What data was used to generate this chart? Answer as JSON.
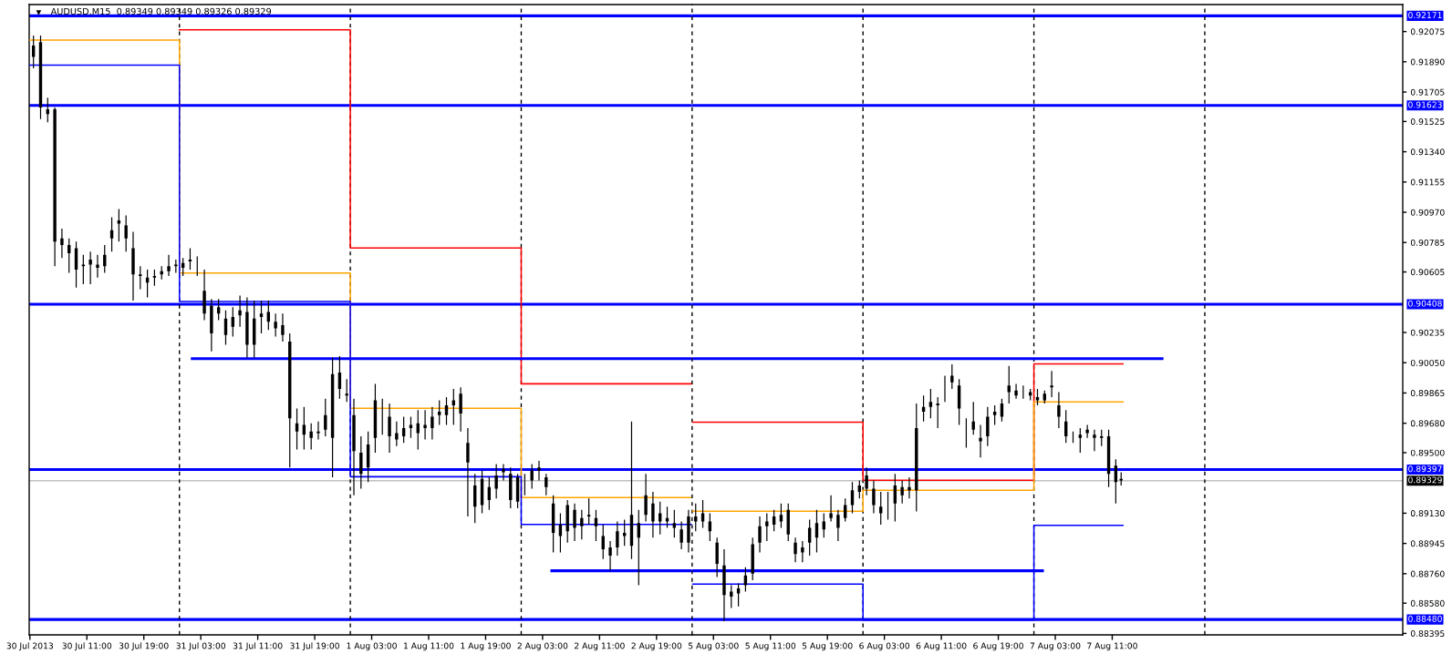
{
  "chart_data": [
    {
      "type": "candlestick",
      "title": "AUDUSD,M15  0.89349 0.89349 0.89326 0.89329",
      "x": [
        "2013-07-30T03:30",
        "2013-07-30T04:30",
        "2013-07-30T05:30",
        "2013-07-30T06:30",
        "2013-07-30T07:30",
        "2013-07-30T08:30",
        "2013-07-30T09:30",
        "2013-07-30T10:30",
        "2013-07-30T11:30",
        "2013-07-30T12:30",
        "2013-07-30T13:30",
        "2013-07-30T14:30",
        "2013-07-30T15:30",
        "2013-07-30T16:30",
        "2013-07-30T17:30",
        "2013-07-30T18:30",
        "2013-07-30T19:30",
        "2013-07-30T20:30",
        "2013-07-30T21:30",
        "2013-07-30T22:30",
        "2013-07-30T23:30",
        "2013-07-31T00:30",
        "2013-07-31T01:30",
        "2013-07-31T02:30",
        "2013-07-31T03:30",
        "2013-07-31T04:30",
        "2013-07-31T05:30",
        "2013-07-31T06:30",
        "2013-07-31T07:30",
        "2013-07-31T08:30",
        "2013-07-31T09:30",
        "2013-07-31T10:30",
        "2013-07-31T11:30",
        "2013-07-31T12:30",
        "2013-07-31T13:30",
        "2013-07-31T14:30",
        "2013-07-31T15:30",
        "2013-07-31T16:30",
        "2013-07-31T17:30",
        "2013-07-31T18:30",
        "2013-07-31T19:30",
        "2013-07-31T20:30",
        "2013-07-31T21:30",
        "2013-07-31T22:30",
        "2013-07-31T23:30",
        "2013-08-01T00:30",
        "2013-08-01T01:30",
        "2013-08-01T02:30",
        "2013-08-01T03:30",
        "2013-08-01T04:30",
        "2013-08-01T05:30",
        "2013-08-01T06:30",
        "2013-08-01T07:30",
        "2013-08-01T08:30",
        "2013-08-01T09:30",
        "2013-08-01T10:30",
        "2013-08-01T11:30",
        "2013-08-01T12:30",
        "2013-08-01T13:30",
        "2013-08-01T14:30",
        "2013-08-01T15:30",
        "2013-08-01T16:30",
        "2013-08-01T17:30",
        "2013-08-01T18:30",
        "2013-08-01T19:30",
        "2013-08-01T20:30",
        "2013-08-01T21:30",
        "2013-08-01T22:30",
        "2013-08-01T23:30",
        "2013-08-02T00:30",
        "2013-08-02T01:30",
        "2013-08-02T02:30",
        "2013-08-02T03:30",
        "2013-08-02T04:30",
        "2013-08-02T05:30",
        "2013-08-02T06:30",
        "2013-08-02T07:30",
        "2013-08-02T08:30",
        "2013-08-02T09:30",
        "2013-08-02T10:30",
        "2013-08-02T11:30",
        "2013-08-02T12:30",
        "2013-08-02T13:30",
        "2013-08-02T14:30",
        "2013-08-02T15:30",
        "2013-08-02T16:30",
        "2013-08-02T17:30",
        "2013-08-02T18:30",
        "2013-08-02T19:30",
        "2013-08-02T20:30",
        "2013-08-02T21:30",
        "2013-08-02T22:30",
        "2013-08-02T23:30"
      ],
      "ohlc": [
        [
          0.9192,
          0.9205,
          0.9185,
          0.9199
        ],
        [
          0.9201,
          0.9205,
          0.9154,
          0.9161
        ],
        [
          0.916,
          0.9167,
          0.9152,
          0.9157
        ],
        [
          0.916,
          0.9161,
          0.9064,
          0.9079
        ],
        [
          0.9077,
          0.9087,
          0.9069,
          0.9081
        ],
        [
          0.9077,
          0.9081,
          0.906,
          0.9072
        ],
        [
          0.9075,
          0.9079,
          0.9051,
          0.9062
        ],
        [
          0.9065,
          0.9071,
          0.9053,
          0.9064
        ],
        [
          0.9068,
          0.9073,
          0.9053,
          0.9065
        ],
        [
          0.9065,
          0.9071,
          0.9057,
          0.9063
        ],
        [
          0.9064,
          0.9077,
          0.906,
          0.9071
        ],
        [
          0.9081,
          0.9094,
          0.9073,
          0.9086
        ],
        [
          0.909,
          0.9099,
          0.9079,
          0.9092
        ],
        [
          0.9089,
          0.9095,
          0.9073,
          0.9081
        ],
        [
          0.9075,
          0.9085,
          0.9043,
          0.9059
        ],
        [
          0.9058,
          0.9064,
          0.905,
          0.9059
        ],
        [
          0.9057,
          0.9062,
          0.9045,
          0.9054
        ],
        [
          0.9057,
          0.9062,
          0.9052,
          0.9058
        ],
        [
          0.9059,
          0.9064,
          0.9056,
          0.9061
        ],
        [
          0.9061,
          0.9071,
          0.9058,
          0.9064
        ],
        [
          0.9064,
          0.9068,
          0.906,
          0.9065
        ],
        [
          0.9063,
          0.9069,
          0.9058,
          0.9066
        ],
        [
          0.9068,
          0.9075,
          0.9062,
          0.9067
        ],
        [
          0.9065,
          0.907,
          0.9058,
          0.9065
        ],
        [
          0.9049,
          0.9062,
          0.9031,
          0.9035
        ],
        [
          0.9023,
          0.9044,
          0.9012,
          0.904
        ],
        [
          0.9039,
          0.9044,
          0.9031,
          0.9035
        ],
        [
          0.9032,
          0.9037,
          0.9016,
          0.9022
        ],
        [
          0.9027,
          0.9039,
          0.9021,
          0.9033
        ],
        [
          0.9034,
          0.9046,
          0.9027,
          0.9037
        ],
        [
          0.9036,
          0.9045,
          0.9008,
          0.9016
        ],
        [
          0.9016,
          0.9043,
          0.9008,
          0.9032
        ],
        [
          0.9033,
          0.9043,
          0.9023,
          0.9035
        ],
        [
          0.9036,
          0.9043,
          0.9025,
          0.903
        ],
        [
          0.903,
          0.9035,
          0.9021,
          0.9026
        ],
        [
          0.9028,
          0.9035,
          0.9018,
          0.9022
        ],
        [
          0.9018,
          0.9023,
          0.8941,
          0.8971
        ],
        [
          0.8968,
          0.8977,
          0.8952,
          0.8963
        ],
        [
          0.8961,
          0.8978,
          0.8952,
          0.8967
        ],
        [
          0.8963,
          0.8968,
          0.8952,
          0.8959
        ],
        [
          0.8962,
          0.8969,
          0.8958,
          0.8963
        ],
        [
          0.8964,
          0.8983,
          0.896,
          0.8973
        ],
        [
          0.8959,
          0.9008,
          0.8935,
          0.8998
        ],
        [
          0.8999,
          0.9009,
          0.8983,
          0.8989
        ],
        [
          0.8986,
          0.8995,
          0.8981,
          0.8985
        ],
        [
          0.8973,
          0.8983,
          0.8924,
          0.8951
        ],
        [
          0.895,
          0.896,
          0.8928,
          0.8937
        ],
        [
          0.8941,
          0.8963,
          0.8932,
          0.8955
        ],
        [
          0.8959,
          0.8992,
          0.895,
          0.8982
        ],
        [
          0.8972,
          0.8983,
          0.8961,
          0.8972
        ],
        [
          0.8972,
          0.898,
          0.895,
          0.896
        ],
        [
          0.8962,
          0.8969,
          0.8954,
          0.8958
        ],
        [
          0.896,
          0.8972,
          0.8956,
          0.8965
        ],
        [
          0.8965,
          0.8972,
          0.8959,
          0.8967
        ],
        [
          0.8968,
          0.8976,
          0.8952,
          0.8962
        ],
        [
          0.8967,
          0.8976,
          0.8958,
          0.8965
        ],
        [
          0.8965,
          0.8978,
          0.8958,
          0.8972
        ],
        [
          0.8973,
          0.8982,
          0.8967,
          0.8975
        ],
        [
          0.8979,
          0.8984,
          0.8967,
          0.8973
        ],
        [
          0.8979,
          0.8989,
          0.8967,
          0.8982
        ],
        [
          0.8986,
          0.899,
          0.8963,
          0.8974
        ],
        [
          0.8956,
          0.8965,
          0.8911,
          0.8944
        ],
        [
          0.893,
          0.8937,
          0.8907,
          0.8917
        ],
        [
          0.8934,
          0.8939,
          0.8913,
          0.8918
        ],
        [
          0.8921,
          0.8935,
          0.8915,
          0.8929
        ],
        [
          0.8928,
          0.8943,
          0.8922,
          0.8936
        ],
        [
          0.894,
          0.8943,
          0.8933,
          0.8938
        ],
        [
          0.8937,
          0.8941,
          0.8916,
          0.8921
        ],
        [
          0.892,
          0.8937,
          0.8916,
          0.8935
        ],
        [
          0.8933,
          0.8937,
          0.8924,
          0.8933
        ],
        [
          0.8933,
          0.8943,
          0.8928,
          0.8939
        ],
        [
          0.8939,
          0.8945,
          0.8933,
          0.8941
        ],
        [
          0.8935,
          0.8937,
          0.8924,
          0.8929
        ],
        [
          0.8919,
          0.8924,
          0.8889,
          0.8901
        ],
        [
          0.8899,
          0.8913,
          0.8889,
          0.8906
        ],
        [
          0.8902,
          0.8921,
          0.8895,
          0.8918
        ],
        [
          0.8915,
          0.8919,
          0.8896,
          0.8904
        ],
        [
          0.8905,
          0.8915,
          0.8897,
          0.891
        ],
        [
          0.8912,
          0.8922,
          0.8906,
          0.8911
        ],
        [
          0.891,
          0.8915,
          0.8896,
          0.8905
        ],
        [
          0.8899,
          0.8906,
          0.8885,
          0.8891
        ],
        [
          0.8892,
          0.8896,
          0.8878,
          0.8887
        ],
        [
          0.8892,
          0.8908,
          0.8887,
          0.8902
        ],
        [
          0.8899,
          0.8909,
          0.8893,
          0.8901
        ],
        [
          0.8893,
          0.8969,
          0.8885,
          0.8912
        ],
        [
          0.8907,
          0.8915,
          0.8869,
          0.8898
        ],
        [
          0.8912,
          0.8937,
          0.8908,
          0.8924
        ],
        [
          0.8919,
          0.8926,
          0.8898,
          0.8908
        ],
        [
          0.8908,
          0.892,
          0.89,
          0.8913
        ],
        [
          0.891,
          0.8917,
          0.8904,
          0.8908
        ],
        [
          0.8907,
          0.8915,
          0.8898,
          0.8904
        ],
        [
          0.8903,
          0.8908,
          0.8891,
          0.8895
        ],
        [
          0.8895,
          0.8915,
          0.8889,
          0.8911
        ]
      ],
      "series": [
        {
          "type": "step",
          "color": "#ff0000",
          "x": [
            "2013-07-31T00:00",
            "2013-08-01T00:00",
            "2013-08-02T00:00",
            "2013-08-03T00:00"
          ],
          "values": [
            0.92086,
            0.90751,
            0.89921,
            0.89921
          ]
        },
        {
          "type": "step",
          "color": "#ffa500",
          "x": [
            "2013-07-30T03:00",
            "2013-07-31T00:00",
            "2013-08-01T00:00",
            "2013-08-02T00:00",
            "2013-08-03T00:00"
          ],
          "values": [
            0.92023,
            0.90598,
            0.89771,
            0.89225,
            0.89225
          ]
        },
        {
          "type": "step",
          "color": "#0000ff",
          "x": [
            "2013-07-30T03:00",
            "2013-07-31T00:00",
            "2013-08-01T00:00",
            "2013-08-02T00:00",
            "2013-08-03T00:00"
          ],
          "values": [
            0.9187,
            0.90425,
            0.89353,
            0.89061,
            0.89061
          ]
        },
        {
          "type": "line",
          "color": "#0000ff",
          "x": [
            "2013-07-31T01:36",
            "2013-08-03T00:00"
          ],
          "values": [
            0.90075,
            0.90075
          ]
        },
        {
          "type": "line",
          "color": "#0000ff",
          "x": [
            "2013-08-02T04:06",
            "2013-08-03T00:00"
          ],
          "values": [
            0.88778,
            0.88778
          ]
        }
      ],
      "ref_lines": [
        {
          "axis": "y",
          "value": 0.92171,
          "color": "#0000ff"
        },
        {
          "axis": "y",
          "value": 0.91623,
          "color": "#0000ff"
        },
        {
          "axis": "y",
          "value": 0.90408,
          "color": "#0000ff"
        },
        {
          "axis": "y",
          "value": 0.89397,
          "color": "#0000ff"
        },
        {
          "axis": "y",
          "value": 0.8848,
          "color": "#0000ff"
        },
        {
          "axis": "y",
          "value": 0.89329,
          "color": "#c0c0c0"
        },
        {
          "axis": "x",
          "value": "2013-07-31T00:00",
          "color": "#000000",
          "line_style": "dashed"
        },
        {
          "axis": "x",
          "value": "2013-08-01T00:00",
          "color": "#000000",
          "line_style": "dashed"
        },
        {
          "axis": "x",
          "value": "2013-08-02T00:00",
          "color": "#000000",
          "line_style": "dashed"
        }
      ],
      "xlim": [
        "2013-07-30T02:54",
        "2013-08-03T00:00"
      ],
      "ylim": [
        0.88386,
        0.9224
      ],
      "xticks": [
        {
          "value": "2013-07-30T03:00",
          "label": "30 Jul 2013"
        },
        {
          "value": "2013-07-30T11:00",
          "label": "30 Jul 11:00"
        },
        {
          "value": "2013-07-30T19:00",
          "label": "30 Jul 19:00"
        },
        {
          "value": "2013-07-31T03:00",
          "label": "31 Jul 03:00"
        },
        {
          "value": "2013-07-31T11:00",
          "label": "31 Jul 11:00"
        },
        {
          "value": "2013-07-31T19:00",
          "label": "31 Jul 19:00"
        },
        {
          "value": "2013-08-01T03:00",
          "label": "1 Aug 03:00"
        },
        {
          "value": "2013-08-01T11:00",
          "label": "1 Aug 11:00"
        },
        {
          "value": "2013-08-01T19:00",
          "label": "1 Aug 19:00"
        },
        {
          "value": "2013-08-02T03:00",
          "label": "2 Aug 03:00"
        },
        {
          "value": "2013-08-02T11:00",
          "label": "2 Aug 11:00"
        },
        {
          "value": "2013-08-02T19:00",
          "label": "2 Aug 19:00"
        }
      ],
      "tick_labels": "x"
    },
    {
      "type": "candlestick",
      "x": [
        "2013-08-05T00:30",
        "2013-08-05T01:30",
        "2013-08-05T02:30",
        "2013-08-05T03:30",
        "2013-08-05T04:30",
        "2013-08-05T05:30",
        "2013-08-05T06:30",
        "2013-08-05T07:30",
        "2013-08-05T08:30",
        "2013-08-05T09:30",
        "2013-08-05T10:30",
        "2013-08-05T11:30",
        "2013-08-05T12:30",
        "2013-08-05T13:30",
        "2013-08-05T14:30",
        "2013-08-05T15:30",
        "2013-08-05T16:30",
        "2013-08-05T17:30",
        "2013-08-05T18:30",
        "2013-08-05T19:30",
        "2013-08-05T20:30",
        "2013-08-05T21:30",
        "2013-08-05T22:30",
        "2013-08-05T23:30",
        "2013-08-06T00:30",
        "2013-08-06T01:30",
        "2013-08-06T02:30",
        "2013-08-06T03:30",
        "2013-08-06T04:30",
        "2013-08-06T05:30",
        "2013-08-06T06:30",
        "2013-08-06T07:30",
        "2013-08-06T08:30",
        "2013-08-06T09:30",
        "2013-08-06T10:30",
        "2013-08-06T11:30",
        "2013-08-06T12:30",
        "2013-08-06T13:30",
        "2013-08-06T14:30",
        "2013-08-06T15:30",
        "2013-08-06T16:30",
        "2013-08-06T17:30",
        "2013-08-06T18:30",
        "2013-08-06T19:30",
        "2013-08-06T20:30",
        "2013-08-06T21:30",
        "2013-08-06T22:30",
        "2013-08-06T23:30",
        "2013-08-07T00:30",
        "2013-08-07T01:30",
        "2013-08-07T02:30",
        "2013-08-07T03:30",
        "2013-08-07T04:30",
        "2013-08-07T05:30",
        "2013-08-07T06:30",
        "2013-08-07T07:30",
        "2013-08-07T08:30",
        "2013-08-07T09:30",
        "2013-08-07T10:30",
        "2013-08-07T11:30",
        "2013-08-07T12:15"
      ],
      "ohlc": [
        [
          0.8911,
          0.8919,
          0.8902,
          0.8908
        ],
        [
          0.8913,
          0.8921,
          0.8904,
          0.8908
        ],
        [
          0.8908,
          0.8913,
          0.8896,
          0.8902
        ],
        [
          0.8895,
          0.8898,
          0.8874,
          0.8882
        ],
        [
          0.8881,
          0.8891,
          0.8847,
          0.8863
        ],
        [
          0.8862,
          0.8869,
          0.8855,
          0.8865
        ],
        [
          0.8864,
          0.887,
          0.8856,
          0.8867
        ],
        [
          0.8869,
          0.888,
          0.8865,
          0.8875
        ],
        [
          0.8876,
          0.8898,
          0.8872,
          0.8894
        ],
        [
          0.8895,
          0.8911,
          0.8889,
          0.8905
        ],
        [
          0.8905,
          0.8913,
          0.8896,
          0.8908
        ],
        [
          0.8906,
          0.8915,
          0.8902,
          0.8911
        ],
        [
          0.8908,
          0.8919,
          0.8904,
          0.8912
        ],
        [
          0.8915,
          0.8919,
          0.8896,
          0.89
        ],
        [
          0.8895,
          0.8898,
          0.8883,
          0.8888
        ],
        [
          0.8889,
          0.8896,
          0.8883,
          0.8892
        ],
        [
          0.8895,
          0.8909,
          0.8887,
          0.8904
        ],
        [
          0.8898,
          0.8915,
          0.8889,
          0.8907
        ],
        [
          0.8903,
          0.8913,
          0.8898,
          0.8908
        ],
        [
          0.8913,
          0.8924,
          0.8908,
          0.891
        ],
        [
          0.8912,
          0.8915,
          0.8896,
          0.8904
        ],
        [
          0.891,
          0.8922,
          0.8908,
          0.8918
        ],
        [
          0.8918,
          0.8932,
          0.8913,
          0.8927
        ],
        [
          0.893,
          0.8933,
          0.8922,
          0.8926
        ],
        [
          0.8928,
          0.8941,
          0.8924,
          0.8936
        ],
        [
          0.8928,
          0.8933,
          0.8913,
          0.8918
        ],
        [
          0.8917,
          0.8926,
          0.8906,
          0.8913
        ],
        [
          0.8916,
          0.8926,
          0.8909,
          0.8916
        ],
        [
          0.8919,
          0.8937,
          0.8908,
          0.893
        ],
        [
          0.8929,
          0.8933,
          0.8919,
          0.8924
        ],
        [
          0.8927,
          0.8935,
          0.8922,
          0.8929
        ],
        [
          0.8927,
          0.898,
          0.8914,
          0.8965
        ],
        [
          0.8978,
          0.8985,
          0.8969,
          0.8975
        ],
        [
          0.8978,
          0.8989,
          0.8971,
          0.8981
        ],
        [
          0.898,
          0.8984,
          0.8965,
          0.8979
        ],
        [
          0.8989,
          0.8997,
          0.8981,
          0.8989
        ],
        [
          0.8997,
          0.9004,
          0.8989,
          0.8993
        ],
        [
          0.8991,
          0.8995,
          0.8967,
          0.8977
        ],
        [
          0.8962,
          0.8971,
          0.8953,
          0.8962
        ],
        [
          0.8964,
          0.8981,
          0.8961,
          0.8969
        ],
        [
          0.8959,
          0.8967,
          0.8947,
          0.8957
        ],
        [
          0.896,
          0.8978,
          0.8954,
          0.8972
        ],
        [
          0.8975,
          0.8979,
          0.8967,
          0.8973
        ],
        [
          0.8972,
          0.8983,
          0.8969,
          0.898
        ],
        [
          0.8991,
          0.9003,
          0.898,
          0.8987
        ],
        [
          0.8988,
          0.8992,
          0.8983,
          0.8985
        ],
        [
          0.8985,
          0.8991,
          0.8983,
          0.8985
        ],
        [
          0.8985,
          0.8989,
          0.8982,
          0.8987
        ],
        [
          0.8984,
          0.8989,
          0.8979,
          0.8982
        ],
        [
          0.8982,
          0.8988,
          0.898,
          0.8986
        ],
        [
          0.8991,
          0.9,
          0.8984,
          0.899
        ],
        [
          0.8979,
          0.8987,
          0.8965,
          0.8972
        ],
        [
          0.8969,
          0.8976,
          0.8956,
          0.896
        ],
        [
          0.8959,
          0.8963,
          0.8956,
          0.8959
        ],
        [
          0.8959,
          0.8965,
          0.895,
          0.8961
        ],
        [
          0.8962,
          0.8967,
          0.8959,
          0.8964
        ],
        [
          0.8961,
          0.8964,
          0.8951,
          0.8959
        ],
        [
          0.8959,
          0.8964,
          0.8954,
          0.896
        ],
        [
          0.896,
          0.8964,
          0.8929,
          0.8937
        ],
        [
          0.8942,
          0.8946,
          0.8919,
          0.8932
        ],
        [
          0.8934,
          0.8938,
          0.893,
          0.8933
        ]
      ],
      "series": [
        {
          "type": "step",
          "color": "#ff0000",
          "x": [
            "2013-08-05T00:00",
            "2013-08-06T00:00",
            "2013-08-07T00:00",
            "2013-08-07T12:30"
          ],
          "values": [
            0.89687,
            0.89331,
            0.90043,
            0.90043
          ]
        },
        {
          "type": "step",
          "color": "#ffa500",
          "x": [
            "2013-08-05T00:00",
            "2013-08-06T00:00",
            "2013-08-07T00:00",
            "2013-08-07T12:30"
          ],
          "values": [
            0.89142,
            0.8927,
            0.8981,
            0.8981
          ]
        },
        {
          "type": "step",
          "color": "#0000ff",
          "x": [
            "2013-08-05T00:00",
            "2013-08-06T00:00",
            "2013-08-07T00:00",
            "2013-08-07T12:30"
          ],
          "values": [
            0.88696,
            0.88477,
            0.89056,
            0.89056
          ]
        },
        {
          "type": "line",
          "color": "#0000ff",
          "x": [
            "2013-08-05T00:00",
            "2013-08-07T18:12"
          ],
          "values": [
            0.90075,
            0.90075
          ]
        },
        {
          "type": "line",
          "color": "#0000ff",
          "x": [
            "2013-08-05T00:00",
            "2013-08-07T01:24"
          ],
          "values": [
            0.88778,
            0.88778
          ]
        }
      ],
      "ref_lines": [
        {
          "axis": "y",
          "value": 0.92171,
          "label": "0.92171",
          "color": "#0000ff"
        },
        {
          "axis": "y",
          "value": 0.91623,
          "label": "0.91623",
          "color": "#0000ff"
        },
        {
          "axis": "y",
          "value": 0.90408,
          "label": "0.90408",
          "color": "#0000ff"
        },
        {
          "axis": "y",
          "value": 0.89397,
          "label": "0.89397",
          "color": "#0000ff"
        },
        {
          "axis": "y",
          "value": 0.8848,
          "label": "0.88480",
          "color": "#0000ff"
        },
        {
          "axis": "y",
          "value": 0.89329,
          "label": "0.89329",
          "color": "#c0c0c0"
        },
        {
          "axis": "x",
          "value": "2013-08-05T00:00",
          "color": "#000000",
          "line_style": "dashed"
        },
        {
          "axis": "x",
          "value": "2013-08-06T00:00",
          "color": "#000000",
          "line_style": "dashed"
        },
        {
          "axis": "x",
          "value": "2013-08-07T00:00",
          "color": "#000000",
          "line_style": "dashed"
        },
        {
          "axis": "x",
          "value": "2013-08-08T00:00",
          "color": "#000000",
          "line_style": "dashed"
        }
      ],
      "xlim": [
        "2013-08-05T00:00",
        "2013-08-09T03:48"
      ],
      "ylim": [
        0.88386,
        0.9224
      ],
      "xticks": [
        {
          "value": "2013-08-05T03:00",
          "label": "5 Aug 03:00"
        },
        {
          "value": "2013-08-05T11:00",
          "label": "5 Aug 11:00"
        },
        {
          "value": "2013-08-05T19:00",
          "label": "5 Aug 19:00"
        },
        {
          "value": "2013-08-06T03:00",
          "label": "6 Aug 03:00"
        },
        {
          "value": "2013-08-06T11:00",
          "label": "6 Aug 11:00"
        },
        {
          "value": "2013-08-06T19:00",
          "label": "6 Aug 19:00"
        },
        {
          "value": "2013-08-07T03:00",
          "label": "7 Aug 03:00"
        },
        {
          "value": "2013-08-07T11:00",
          "label": "7 Aug 11:00"
        }
      ],
      "yticks": [
        0.92075,
        {
          "value": 0.9189,
          "label": "0.91890"
        },
        0.91705,
        0.91525,
        {
          "value": 0.9134,
          "label": "0.91340"
        },
        0.91155,
        {
          "value": 0.9097,
          "label": "0.90970"
        },
        0.90785,
        0.90605,
        0.90235,
        {
          "value": 0.9005,
          "label": "0.90050"
        },
        0.89865,
        {
          "value": 0.8968,
          "label": "0.89680"
        },
        {
          "value": 0.895,
          "label": "0.89500"
        },
        {
          "value": 0.8913,
          "label": "0.89130"
        },
        0.88945,
        {
          "value": 0.8876,
          "label": "0.88760"
        },
        {
          "value": 0.8858,
          "label": "0.88580"
        },
        0.88395
      ]
    }
  ]
}
